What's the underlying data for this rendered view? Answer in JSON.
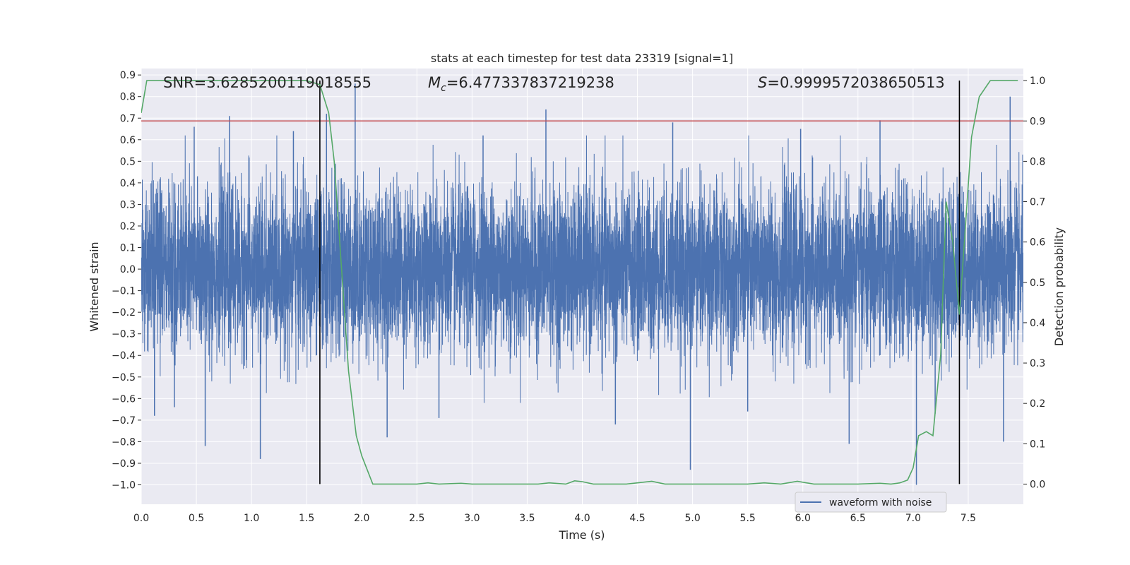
{
  "chart_data": {
    "type": "line",
    "title": "stats at each timestep for test data 23319 [signal=1]",
    "xlabel": "Time (s)",
    "ylabel": "Whitened strain",
    "ylabel_right": "Detection probability",
    "xlim": [
      0.0,
      8.0
    ],
    "ylim": [
      -1.09,
      0.93
    ],
    "ylim_right": [
      -0.05,
      1.03
    ],
    "x_ticks": [
      "0.0",
      "0.5",
      "1.0",
      "1.5",
      "2.0",
      "2.5",
      "3.0",
      "3.5",
      "4.0",
      "4.5",
      "5.0",
      "5.5",
      "6.0",
      "6.5",
      "7.0",
      "7.5"
    ],
    "y_ticks": [
      "0.9",
      "0.8",
      "0.7",
      "0.6",
      "0.5",
      "0.4",
      "0.3",
      "0.2",
      "0.1",
      "0.0",
      "−0.1",
      "−0.2",
      "−0.3",
      "−0.4",
      "−0.5",
      "−0.6",
      "−0.7",
      "−0.8",
      "−0.9",
      "−1.0"
    ],
    "y_ticks_right": [
      "1.0",
      "0.9",
      "0.8",
      "0.7",
      "0.6",
      "0.5",
      "0.4",
      "0.3",
      "0.2",
      "0.1",
      "0.0"
    ],
    "grid": true,
    "legend": {
      "position": "lower-right",
      "entries": [
        "waveform with noise"
      ]
    },
    "annotations": {
      "snr": "SNR=3.6285200119018555",
      "mc_symbol": "M",
      "mc_sub": "c",
      "mc_value": "=6.477337837219238",
      "s_symbol": "S",
      "s_value": "=0.9999572038650513"
    },
    "threshold": {
      "axis": "right",
      "value": 0.9,
      "color": "#c44e52"
    },
    "vlines": [
      1.62,
      7.42
    ],
    "series": [
      {
        "name": "waveform with noise",
        "axis": "left",
        "color": "#4c72b0",
        "sample_rate": 1024,
        "envelope_typical": 0.5,
        "spikes": [
          {
            "x": 0.58,
            "y": -0.82
          },
          {
            "x": 1.08,
            "y": -0.88
          },
          {
            "x": 0.12,
            "y": -0.68
          },
          {
            "x": 0.8,
            "y": 0.71
          },
          {
            "x": 1.68,
            "y": 0.72
          },
          {
            "x": 1.94,
            "y": 0.86
          },
          {
            "x": 2.23,
            "y": -0.78
          },
          {
            "x": 3.67,
            "y": 0.74
          },
          {
            "x": 4.98,
            "y": -0.93
          },
          {
            "x": 7.03,
            "y": -1.0
          },
          {
            "x": 7.88,
            "y": 0.8
          },
          {
            "x": 7.82,
            "y": -0.8
          },
          {
            "x": 6.42,
            "y": -0.81
          },
          {
            "x": 4.82,
            "y": 0.68
          },
          {
            "x": 3.1,
            "y": 0.62
          },
          {
            "x": 6.7,
            "y": 0.69
          },
          {
            "x": 0.48,
            "y": 0.66
          },
          {
            "x": 5.98,
            "y": 0.65
          },
          {
            "x": 4.3,
            "y": -0.72
          },
          {
            "x": 2.7,
            "y": -0.69
          },
          {
            "x": 7.2,
            "y": -0.67
          },
          {
            "x": 1.38,
            "y": 0.64
          },
          {
            "x": 5.5,
            "y": -0.66
          },
          {
            "x": 0.3,
            "y": -0.64
          }
        ]
      },
      {
        "name": "detection probability",
        "axis": "right",
        "color": "#55a868",
        "x": [
          0.0,
          0.05,
          0.1,
          0.2,
          0.5,
          1.0,
          1.5,
          1.62,
          1.7,
          1.75,
          1.8,
          1.88,
          1.95,
          2.0,
          2.1,
          2.3,
          2.5,
          2.6,
          2.7,
          2.9,
          3.0,
          3.3,
          3.6,
          3.7,
          3.85,
          3.93,
          4.0,
          4.1,
          4.4,
          4.5,
          4.63,
          4.75,
          5.0,
          5.5,
          5.65,
          5.8,
          5.95,
          6.1,
          6.5,
          6.7,
          6.8,
          6.88,
          6.95,
          7.0,
          7.05,
          7.12,
          7.18,
          7.25,
          7.3,
          7.36,
          7.42,
          7.48,
          7.53,
          7.6,
          7.7,
          7.95
        ],
        "y": [
          0.92,
          1.0,
          1.0,
          1.0,
          1.0,
          1.0,
          1.0,
          0.99,
          0.92,
          0.8,
          0.6,
          0.28,
          0.12,
          0.07,
          0.0,
          0.0,
          0.0,
          0.003,
          0.0,
          0.002,
          0.0,
          0.0,
          0.0,
          0.003,
          0.0,
          0.008,
          0.006,
          0.0,
          0.0,
          0.003,
          0.007,
          0.0,
          0.0,
          0.0,
          0.003,
          0.0,
          0.007,
          0.0,
          0.0,
          0.002,
          0.0,
          0.003,
          0.01,
          0.04,
          0.12,
          0.13,
          0.12,
          0.32,
          0.7,
          0.6,
          0.42,
          0.66,
          0.86,
          0.96,
          1.0,
          1.0
        ]
      }
    ]
  }
}
